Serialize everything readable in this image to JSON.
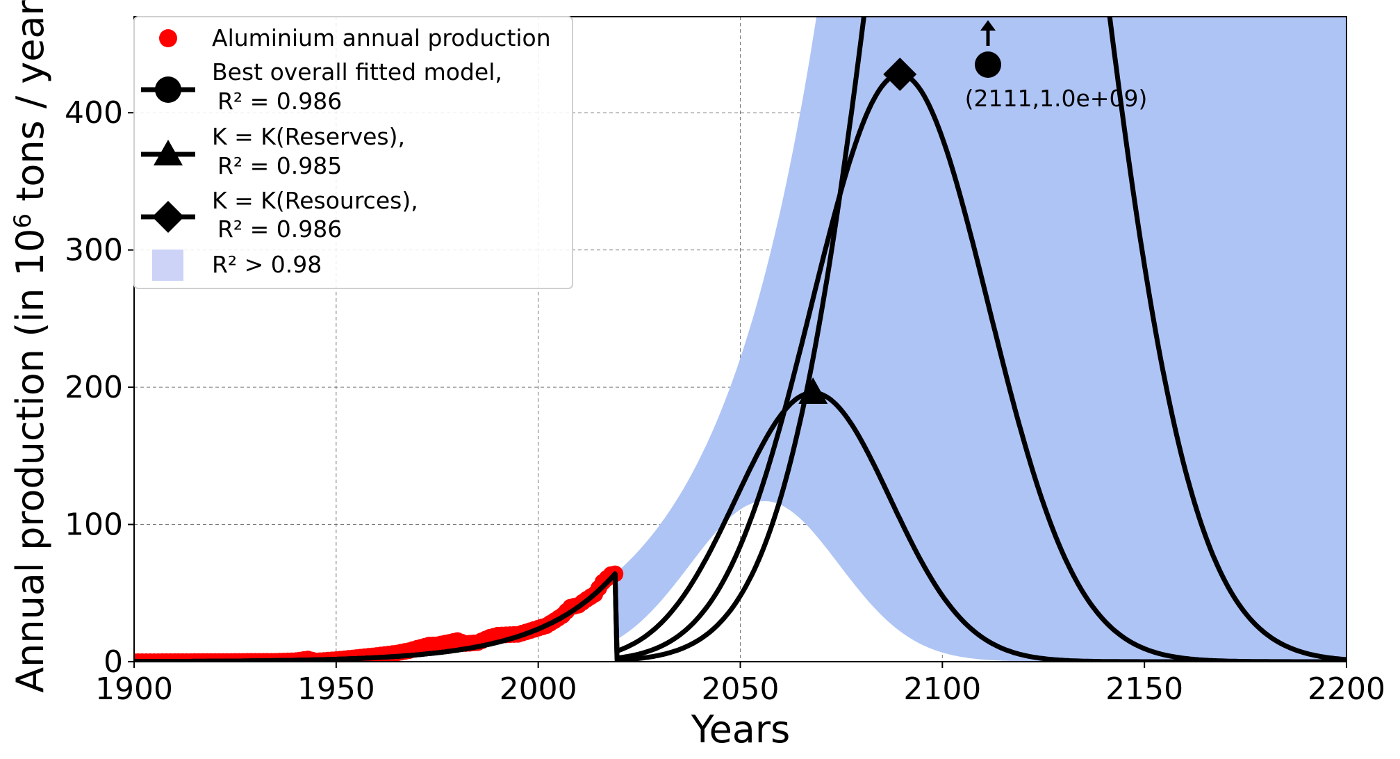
{
  "chart_data": {
    "type": "line",
    "title": "",
    "xlabel": "Years",
    "ylabel_main": "Annual production (in 10",
    "ylabel_exp": "6",
    "ylabel_tail": " tons / year)",
    "xlim": [
      1900,
      2200
    ],
    "ylim": [
      0,
      470
    ],
    "xticks": [
      1900,
      1950,
      2000,
      2050,
      2100,
      2150,
      2200
    ],
    "yticks": [
      0,
      100,
      200,
      300,
      400
    ],
    "grid": true,
    "legend_position": "top-left",
    "legend": {
      "observed": "Aluminium annual production",
      "best_line1": "Best overall fitted model,",
      "best_line2": "R² = 0.986",
      "reserves_line1": "K = K(Reserves),",
      "reserves_line2": "R² = 0.985",
      "resources_line1": "K = K(Resources),",
      "resources_line2": "R² = 0.986",
      "band": "R² > 0.98"
    },
    "colors": {
      "observed": "#ff0000",
      "model": "#000000",
      "band": "#aec4f5"
    },
    "annotation": {
      "text": "(2111,1.0e+09)",
      "x": 2111,
      "arrow": "up"
    },
    "observed": {
      "name": "Aluminium annual production",
      "x": [
        1900,
        1905,
        1910,
        1915,
        1920,
        1925,
        1930,
        1935,
        1940,
        1943,
        1945,
        1950,
        1955,
        1960,
        1965,
        1968,
        1970,
        1973,
        1975,
        1978,
        1980,
        1982,
        1985,
        1988,
        1990,
        1993,
        1995,
        1998,
        2000,
        2002,
        2004,
        2006,
        2008,
        2010,
        2012,
        2014,
        2016,
        2018,
        2019
      ],
      "y": [
        0.01,
        0.02,
        0.04,
        0.08,
        0.13,
        0.18,
        0.27,
        0.26,
        0.78,
        1.95,
        0.49,
        1.5,
        3.0,
        4.5,
        6.3,
        8.0,
        9.7,
        12.1,
        12.3,
        14.1,
        15.4,
        13.2,
        13.9,
        17.8,
        19.3,
        19.7,
        19.9,
        22.6,
        24.4,
        26.2,
        29.8,
        33.7,
        39.7,
        41.2,
        45.5,
        49.2,
        58.0,
        63.4,
        64.0
      ]
    },
    "models": [
      {
        "name": "Best overall fitted model",
        "r2": 0.986,
        "marker": "circle",
        "peak_year": 2111,
        "peak_value": 1000,
        "width": 35,
        "start": 2000
      },
      {
        "name": "K = K(Reserves)",
        "r2": 0.985,
        "marker": "triangle",
        "peak_year": 2068,
        "peak_value": 196,
        "width": 27,
        "start": 2000
      },
      {
        "name": "K = K(Resources)",
        "r2": 0.986,
        "marker": "diamond",
        "peak_year": 2089.5,
        "peak_value": 428,
        "width": 31,
        "start": 2000
      }
    ],
    "band": {
      "name": "R² > 0.98",
      "lower": {
        "peak_year": 2056,
        "peak_value": 117,
        "width": 26
      },
      "upper": {
        "peak_year": 2140,
        "peak_value": 5000,
        "width": 42
      }
    }
  }
}
